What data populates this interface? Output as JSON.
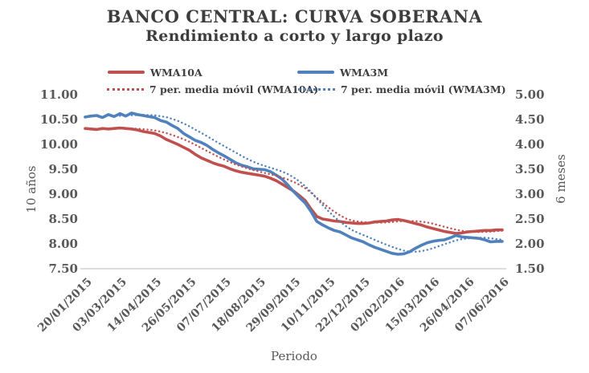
{
  "header": {
    "title": "BANCO CENTRAL: CURVA SOBERANA",
    "subtitle": "Rendimiento a corto y largo plazo"
  },
  "legend": [
    {
      "label": "WMA10A",
      "color": "#C0504D",
      "style": "solid"
    },
    {
      "label": "WMA3M",
      "color": "#4F81BD",
      "style": "solid"
    },
    {
      "label": "7 per. media móvil (WMA10A)",
      "color": "#C0504D",
      "style": "dotted"
    },
    {
      "label": "7 per. media móvil (WMA3M)",
      "color": "#4F81BD",
      "style": "dotted"
    }
  ],
  "chart_data": {
    "type": "line",
    "title": "BANCO CENTRAL: CURVA SOBERANA",
    "subtitle": "Rendimiento a corto y largo plazo",
    "xlabel": "Periodo",
    "legend_position": "top",
    "grid": "x-axis-line-only",
    "x_tick_labels": [
      "20/01/2015",
      "03/03/2015",
      "14/04/2015",
      "26/05/2015",
      "07/07/2015",
      "18/08/2015",
      "29/09/2015",
      "10/11/2015",
      "22/12/2015",
      "02/02/2016",
      "15/03/2016",
      "26/04/2016",
      "07/06/2016"
    ],
    "left_axis": {
      "label": "10 años",
      "min": 7.5,
      "max": 11.0,
      "step": 0.5
    },
    "right_axis": {
      "label": "6 meses",
      "min": 1.5,
      "max": 5.0,
      "step": 0.5
    },
    "tick_decimals": 2,
    "moving_average_period": 7,
    "axis_text_color": "#595959",
    "series": [
      {
        "name": "WMA10A",
        "axis": "left",
        "color": "#C0504D",
        "values": [
          10.32,
          10.31,
          10.3,
          10.32,
          10.31,
          10.32,
          10.33,
          10.32,
          10.31,
          10.29,
          10.26,
          10.24,
          10.22,
          10.17,
          10.1,
          10.05,
          10.0,
          9.94,
          9.88,
          9.8,
          9.73,
          9.68,
          9.63,
          9.59,
          9.56,
          9.51,
          9.47,
          9.44,
          9.42,
          9.4,
          9.38,
          9.36,
          9.32,
          9.27,
          9.2,
          9.13,
          9.06,
          8.97,
          8.87,
          8.7,
          8.55,
          8.5,
          8.48,
          8.46,
          8.45,
          8.43,
          8.42,
          8.41,
          8.41,
          8.42,
          8.44,
          8.45,
          8.46,
          8.48,
          8.49,
          8.47,
          8.44,
          8.41,
          8.38,
          8.34,
          8.31,
          8.28,
          8.25,
          8.23,
          8.21,
          8.22,
          8.24,
          8.25,
          8.26,
          8.27,
          8.27,
          8.28,
          8.28
        ]
      },
      {
        "name": "WMA3M",
        "axis": "right",
        "color": "#4F81BD",
        "values": [
          4.55,
          4.57,
          4.58,
          4.54,
          4.6,
          4.56,
          4.62,
          4.57,
          4.63,
          4.6,
          4.58,
          4.56,
          4.54,
          4.48,
          4.45,
          4.38,
          4.32,
          4.22,
          4.15,
          4.08,
          4.04,
          3.98,
          3.9,
          3.83,
          3.77,
          3.7,
          3.63,
          3.58,
          3.55,
          3.51,
          3.5,
          3.49,
          3.45,
          3.38,
          3.3,
          3.18,
          3.05,
          2.93,
          2.82,
          2.65,
          2.45,
          2.38,
          2.32,
          2.27,
          2.24,
          2.18,
          2.12,
          2.08,
          2.04,
          1.98,
          1.93,
          1.89,
          1.85,
          1.81,
          1.79,
          1.8,
          1.84,
          1.91,
          1.97,
          2.02,
          2.05,
          2.07,
          2.08,
          2.12,
          2.17,
          2.14,
          2.13,
          2.12,
          2.11,
          2.08,
          2.04,
          2.05,
          2.05
        ]
      }
    ]
  }
}
